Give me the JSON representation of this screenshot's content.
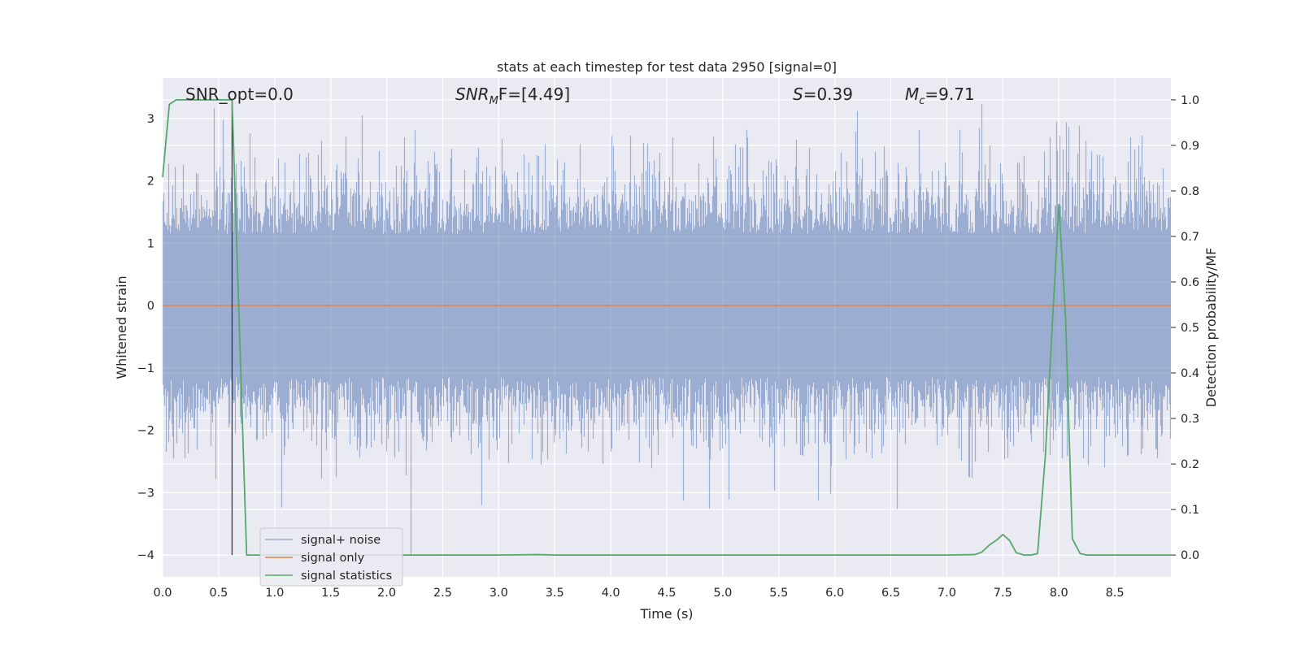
{
  "chart_data": {
    "type": "line",
    "title": "stats at each timestep for test data 2950 [signal=0]",
    "xlabel": "Time (s)",
    "ylabel_left": "Whitened strain",
    "ylabel_right": "Detection probability/MF",
    "xlim": [
      0.0,
      9.0
    ],
    "ylim_left": [
      -4.35,
      3.65
    ],
    "ylim_right": [
      -0.048,
      1.048
    ],
    "x_ticks": [
      0.0,
      0.5,
      1.0,
      1.5,
      2.0,
      2.5,
      3.0,
      3.5,
      4.0,
      4.5,
      5.0,
      5.5,
      6.0,
      6.5,
      7.0,
      7.5,
      8.0,
      8.5
    ],
    "x_tick_labels": [
      "0.0",
      "0.5",
      "1.0",
      "1.5",
      "2.0",
      "2.5",
      "3.0",
      "3.5",
      "4.0",
      "4.5",
      "5.0",
      "5.5",
      "6.0",
      "6.5",
      "7.0",
      "7.5",
      "8.0",
      "8.5"
    ],
    "y_left_ticks": [
      -4,
      -3,
      -2,
      -1,
      0,
      1,
      2,
      3
    ],
    "y_left_tick_labels": [
      "−4",
      "−3",
      "−2",
      "−1",
      "0",
      "1",
      "2",
      "3"
    ],
    "y_right_ticks": [
      0.0,
      0.1,
      0.2,
      0.3,
      0.4,
      0.5,
      0.6,
      0.7,
      0.8,
      0.9,
      1.0
    ],
    "y_right_tick_labels": [
      "0.0",
      "0.1",
      "0.2",
      "0.3",
      "0.4",
      "0.5",
      "0.6",
      "0.7",
      "0.8",
      "0.9",
      "1.0"
    ],
    "grid": true,
    "legend_location": "lower-left",
    "annotations": {
      "snr_opt": "SNR_opt=0.0",
      "snr_mf_base": "SNR",
      "snr_mf_sub": "M",
      "snr_mf_rest": "F=[4.49]",
      "s_sym": "S",
      "s_rest": "=0.39",
      "mc_base": "M",
      "mc_sub": "c",
      "mc_rest": "=9.71"
    },
    "marker_line_x": 0.62,
    "series": [
      {
        "name": "signal+ noise",
        "axis": "left",
        "color": "#4c72b0",
        "opacity": 0.5,
        "kind": "noise",
        "sample_rate_hz": 2048,
        "envelope_core": [
          -1.15,
          1.15
        ],
        "typical_extremes": [
          -2.5,
          2.9
        ],
        "notable_peaks": [
          [
            0.46,
            3.17
          ],
          [
            0.54,
            2.98
          ],
          [
            1.78,
            3.05
          ],
          [
            6.2,
            3.12
          ],
          [
            7.98,
            2.95
          ],
          [
            8.07,
            2.94
          ],
          [
            8.18,
            2.88
          ],
          [
            2.22,
            -4.0
          ],
          [
            1.06,
            -3.24
          ],
          [
            2.85,
            -3.2
          ],
          [
            6.56,
            -3.26
          ],
          [
            4.65,
            -3.13
          ],
          [
            7.2,
            -2.75
          ]
        ]
      },
      {
        "name": "signal only",
        "axis": "left",
        "color": "#dd8452",
        "x": [
          0.0,
          9.0
        ],
        "y": [
          0.0,
          0.0
        ]
      },
      {
        "name": "signal statistics",
        "axis": "right",
        "color": "#55a868",
        "x": [
          0.0,
          0.06,
          0.12,
          0.25,
          0.5,
          0.62,
          0.75,
          1.0,
          2.0,
          3.0,
          3.35,
          3.5,
          4.0,
          5.0,
          6.0,
          7.0,
          7.25,
          7.31,
          7.38,
          7.44,
          7.5,
          7.56,
          7.62,
          7.69,
          7.75,
          7.81,
          7.88,
          7.94,
          8.0,
          8.06,
          8.12,
          8.19,
          8.25,
          8.5,
          9.0
        ],
        "y": [
          0.83,
          0.99,
          1.0,
          1.0,
          1.0,
          1.0,
          0.0,
          0.0,
          0.0,
          0.0,
          0.001,
          0.0,
          0.0,
          0.0,
          0.0,
          0.0,
          0.001,
          0.006,
          0.022,
          0.032,
          0.045,
          0.032,
          0.005,
          0.0,
          0.0,
          0.003,
          0.22,
          0.5,
          0.77,
          0.52,
          0.036,
          0.003,
          0.0,
          0.0,
          0.0
        ]
      }
    ]
  }
}
